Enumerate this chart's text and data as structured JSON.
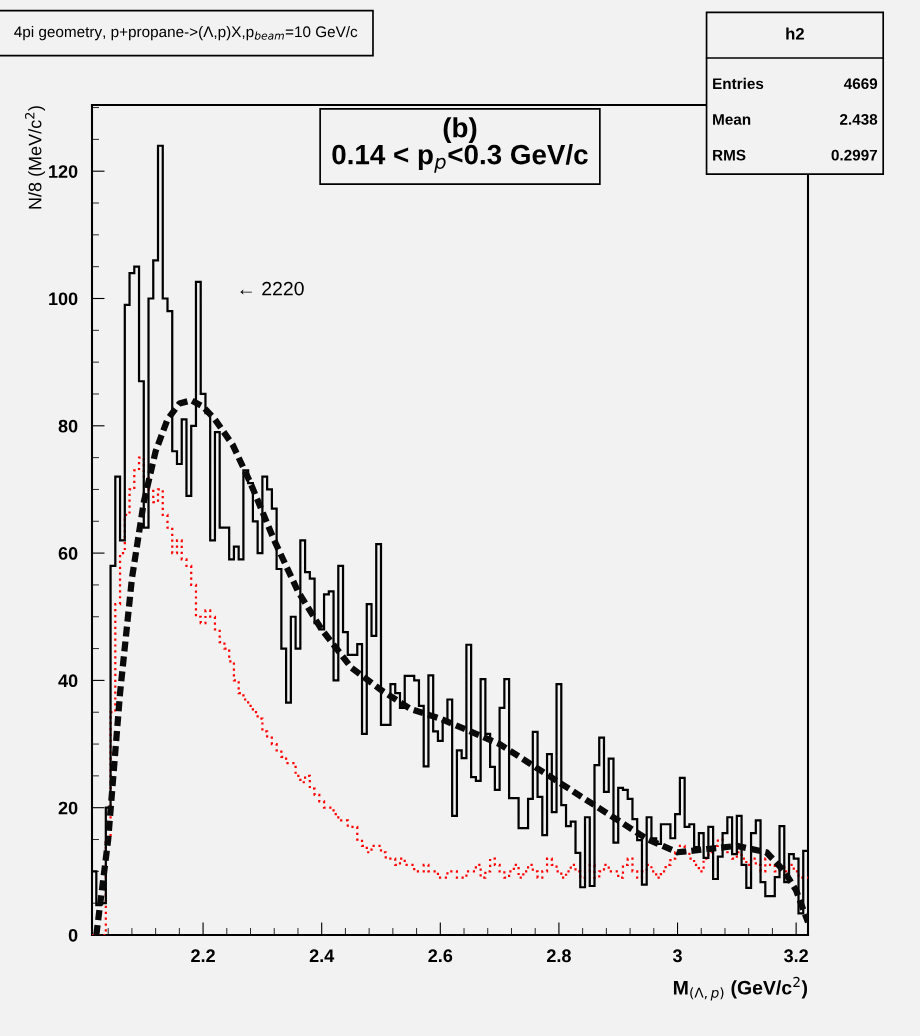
{
  "chart_data": {
    "type": "histogram",
    "title": "4pi geometry, p+propane->(Λ,p)X,p$_{beam}$=10 GeV/c",
    "subtitle": "(b)\n0.14 < p$_{p}$<0.3 GeV/c",
    "xlabel": "M$_{(Λ,p)}$ (GeV/c$^{2}$)",
    "ylabel": "N/8 (MeV/c$^{2}$)",
    "annotations": [
      {
        "text": "← 2220",
        "x": 2.2,
        "y": 102.6
      },
      "h2",
      "Entries",
      "4669",
      "Mean",
      "2.438",
      "RMS",
      "0.2997"
    ],
    "bins": [
      2.012,
      2.02,
      2.028,
      2.036,
      2.044,
      2.052,
      2.06,
      2.068,
      2.076,
      2.084,
      2.092,
      2.1,
      2.108,
      2.116,
      2.124,
      2.132,
      2.14,
      2.148,
      2.156,
      2.164,
      2.172,
      2.18,
      2.188,
      2.196,
      2.204,
      2.212,
      2.22,
      2.228,
      2.236,
      2.244,
      2.252,
      2.26,
      2.268,
      2.276,
      2.284,
      2.292,
      2.3,
      2.308,
      2.316,
      2.324,
      2.332,
      2.34,
      2.348,
      2.356,
      2.364,
      2.372,
      2.38,
      2.388,
      2.396,
      2.404,
      2.412,
      2.42,
      2.428,
      2.436,
      2.444,
      2.452,
      2.46,
      2.468,
      2.476,
      2.484,
      2.492,
      2.5,
      2.508,
      2.516,
      2.524,
      2.532,
      2.54,
      2.548,
      2.556,
      2.564,
      2.572,
      2.58,
      2.588,
      2.596,
      2.604,
      2.612,
      2.62,
      2.628,
      2.636,
      2.644,
      2.652,
      2.66,
      2.668,
      2.676,
      2.684,
      2.692,
      2.7,
      2.708,
      2.716,
      2.724,
      2.732,
      2.74,
      2.748,
      2.756,
      2.764,
      2.772,
      2.78,
      2.788,
      2.796,
      2.804,
      2.812,
      2.82,
      2.828,
      2.836,
      2.844,
      2.852,
      2.86,
      2.868,
      2.876,
      2.884,
      2.892,
      2.9,
      2.908,
      2.916,
      2.924,
      2.932,
      2.94,
      2.948,
      2.956,
      2.964,
      2.972,
      2.98,
      2.988,
      2.996,
      3.004,
      3.012,
      3.02,
      3.028,
      3.036,
      3.044,
      3.052,
      3.06,
      3.068,
      3.076,
      3.084,
      3.092,
      3.1,
      3.108,
      3.116,
      3.124,
      3.132,
      3.14,
      3.148,
      3.156,
      3.164,
      3.172,
      3.18,
      3.188,
      3.196,
      3.204,
      3.212,
      3.22
    ],
    "series": [
      {
        "type": "histogram",
        "color": "#000000",
        "line_style": "solid",
        "values": [
          10,
          4.7,
          5,
          20,
          58,
          72,
          62,
          99,
          104,
          105,
          87,
          64,
          100,
          106,
          124,
          100,
          98,
          76,
          74,
          81,
          69,
          80,
          102.6,
          85,
          82,
          62,
          79,
          64,
          64,
          59,
          61,
          59,
          73,
          71,
          65,
          60,
          72,
          70,
          67,
          57.5,
          45,
          36.5,
          50,
          45,
          62,
          57,
          56,
          49,
          48,
          53.5,
          54,
          40,
          58,
          47.6,
          44,
          44,
          45.7,
          31.6,
          52,
          47,
          61.4,
          33,
          33,
          39.4,
          38,
          35.7,
          40.7,
          40.7,
          40,
          36,
          26.5,
          40.8,
          32,
          30.5,
          33.6,
          37,
          18.7,
          29,
          27.8,
          45.6,
          24.8,
          24.2,
          40.2,
          31.6,
          26.4,
          22.8,
          35.7,
          40.2,
          21.5,
          21.5,
          16.8,
          16.8,
          21.4,
          31.9,
          21.7,
          15.7,
          28.4,
          19.3,
          39.4,
          20.4,
          17.1,
          17.8,
          12.9,
          7.5,
          18.5,
          7.7,
          26.7,
          31,
          22.5,
          27.7,
          14.5,
          23.1,
          22.8,
          21.4,
          18.2,
          14.9,
          7.9,
          18.5,
          15.2,
          14.3,
          17.4,
          17.4,
          15.2,
          19,
          24.7,
          17,
          17.4,
          13.8,
          16,
          12.1,
          17,
          8.8,
          12.3,
          16,
          18.5,
          12.7,
          18.7,
          11,
          7.4,
          16,
          18,
          8.3,
          6.1,
          6.1,
          9.1,
          17.1,
          8.3,
          12.7,
          12,
          3.4,
          13.2
        ]
      },
      {
        "type": "histogram",
        "color": "#ff0000",
        "line_style": "dotted",
        "values": [
          0,
          0,
          0,
          15,
          35,
          52,
          60,
          66,
          70,
          73,
          75,
          72,
          70,
          68,
          70,
          66,
          64,
          60,
          62,
          59,
          58,
          55,
          50,
          49,
          51,
          50,
          48,
          46,
          45,
          43,
          40,
          38,
          37,
          36,
          35,
          34,
          32,
          31,
          30,
          29,
          28,
          27,
          27,
          25,
          24,
          25,
          23,
          22,
          21,
          20,
          20,
          19,
          18,
          18,
          17,
          17,
          15,
          14,
          13,
          14,
          14,
          13,
          12,
          12,
          11,
          12,
          11,
          11,
          10,
          10,
          11,
          10,
          10,
          9,
          9,
          10,
          10,
          9,
          9,
          10,
          10,
          11,
          9,
          10,
          12,
          11,
          10,
          9,
          10,
          11,
          9,
          10,
          11,
          10,
          9,
          10,
          12,
          11,
          10,
          9,
          10,
          11,
          10,
          9,
          10,
          11,
          9,
          10,
          11,
          10,
          10,
          9,
          11,
          12,
          10,
          9,
          10,
          11,
          10,
          9,
          10,
          11,
          12,
          13,
          14,
          13,
          12,
          11,
          10,
          12,
          13,
          14,
          15,
          14,
          13,
          12,
          13,
          12,
          11,
          12,
          11,
          10,
          12,
          11,
          10,
          11,
          10,
          11,
          10,
          9,
          9
        ]
      },
      {
        "type": "line",
        "color": "#0a0a0a",
        "line_style": "dashed",
        "x": [
          2.02,
          2.04,
          2.06,
          2.08,
          2.1,
          2.12,
          2.14,
          2.16,
          2.18,
          2.2,
          2.22,
          2.25,
          2.28,
          2.32,
          2.36,
          2.4,
          2.45,
          2.5,
          2.55,
          2.6,
          2.7,
          2.8,
          2.9,
          2.95,
          3.0,
          3.05,
          3.1,
          3.15,
          3.18,
          3.2,
          3.22
        ],
        "values": [
          0,
          15,
          38,
          56,
          68,
          76,
          81,
          83.5,
          84,
          83,
          81,
          77,
          71,
          62,
          54,
          48,
          42,
          38.5,
          35.5,
          34,
          30,
          24,
          18,
          15,
          13,
          13.5,
          14,
          13,
          10,
          7,
          2
        ]
      }
    ],
    "xlim": [
      2.0127,
      3.22
    ],
    "ylim": [
      0,
      130.4
    ],
    "xticks": [
      2.2,
      2.4,
      2.6,
      2.8,
      3,
      3.2
    ],
    "yticks": [
      0,
      20,
      40,
      60,
      80,
      100,
      120
    ],
    "grid": false,
    "legend": false
  }
}
